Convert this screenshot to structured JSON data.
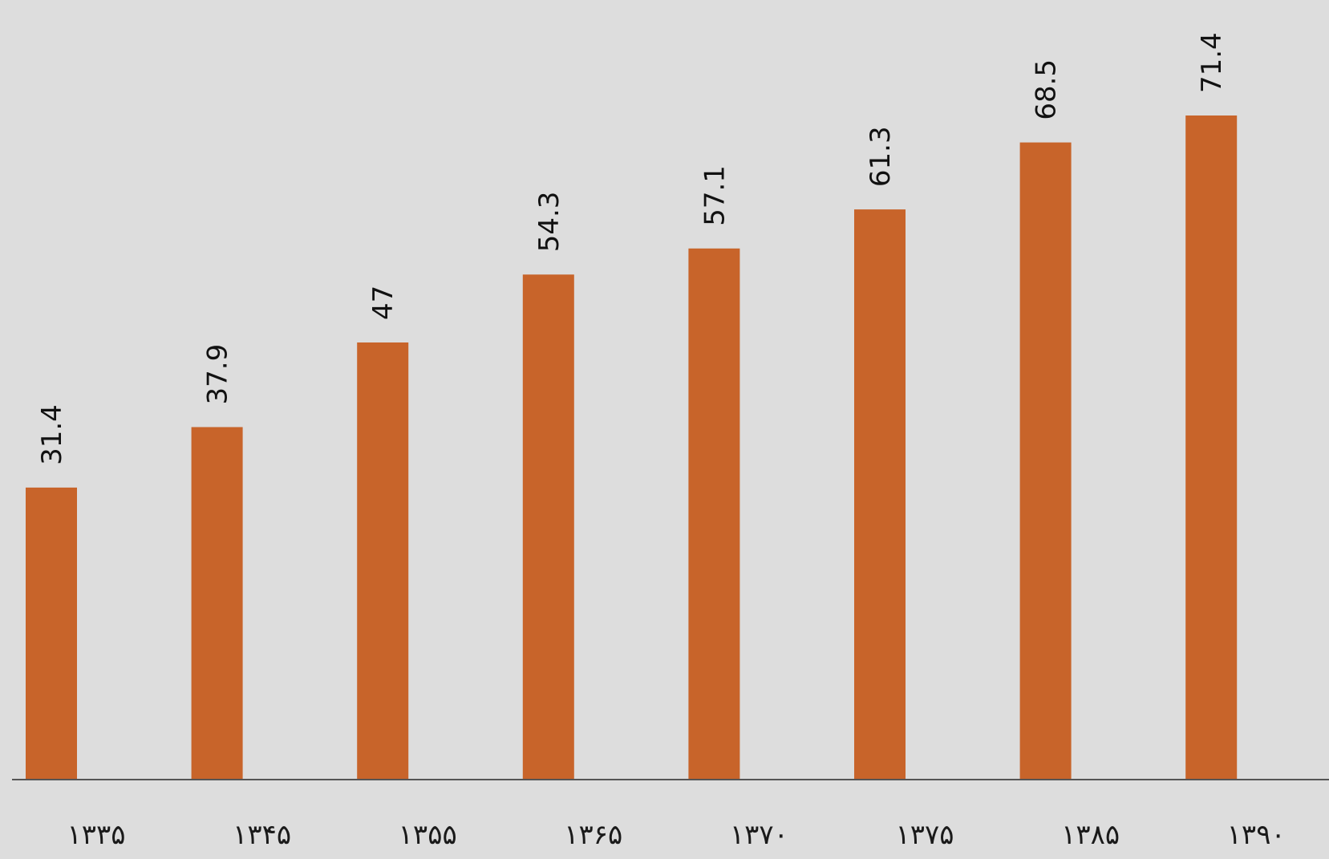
{
  "chart_data": {
    "type": "bar",
    "categories": [
      "۱۳۳۵",
      "۱۳۴۵",
      "۱۳۵۵",
      "۱۳۶۵",
      "۱۳۷۰",
      "۱۳۷۵",
      "۱۳۸۵",
      "۱۳۹۰"
    ],
    "values": [
      31.4,
      37.9,
      47,
      54.3,
      57.1,
      61.3,
      68.5,
      71.4
    ],
    "value_labels": [
      "31.4",
      "37.9",
      "47",
      "54.3",
      "57.1",
      "61.3",
      "68.5",
      "71.4"
    ],
    "title": "",
    "xlabel": "",
    "ylabel": "",
    "ylim": [
      0,
      80
    ],
    "grid": false,
    "legend": "none",
    "colors": {
      "bar": "#c8642a",
      "axis": "#555555",
      "background": "#dddddd"
    }
  }
}
